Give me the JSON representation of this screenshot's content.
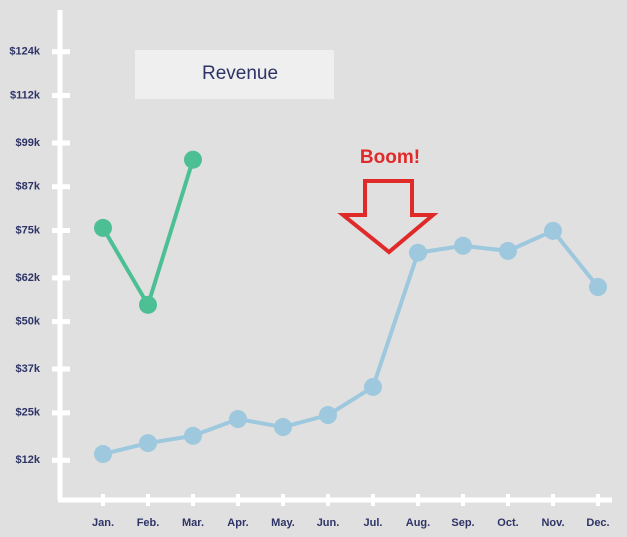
{
  "chart_data": {
    "type": "line",
    "title": "Revenue",
    "annotation": "Boom!",
    "categories": [
      "Jan.",
      "Feb.",
      "Mar.",
      "Apr.",
      "May.",
      "Jun.",
      "Jul.",
      "Aug.",
      "Sep.",
      "Oct.",
      "Nov.",
      "Dec."
    ],
    "series": [
      {
        "color": "#4dbf94",
        "values": [
          75700,
          54600,
          94400,
          null,
          null,
          null,
          null,
          null,
          null,
          null,
          null,
          null
        ]
      },
      {
        "color": "#9dc8de",
        "values": [
          13700,
          16700,
          18700,
          23300,
          21100,
          24400,
          32100,
          68900,
          70800,
          69400,
          74900,
          59500
        ]
      }
    ],
    "ylim": [
      0,
      136000
    ],
    "yticks": [
      {
        "value": 12000,
        "label": "$12k"
      },
      {
        "value": 25000,
        "label": "$25k"
      },
      {
        "value": 37000,
        "label": "$37k"
      },
      {
        "value": 50000,
        "label": "$50k"
      },
      {
        "value": 62000,
        "label": "$62k"
      },
      {
        "value": 75000,
        "label": "$75k"
      },
      {
        "value": 87000,
        "label": "$87k"
      },
      {
        "value": 99000,
        "label": "$99k"
      },
      {
        "value": 112000,
        "label": "$112k"
      },
      {
        "value": 124000,
        "label": "$124k"
      }
    ],
    "annotation_color": "#e02a2a"
  }
}
